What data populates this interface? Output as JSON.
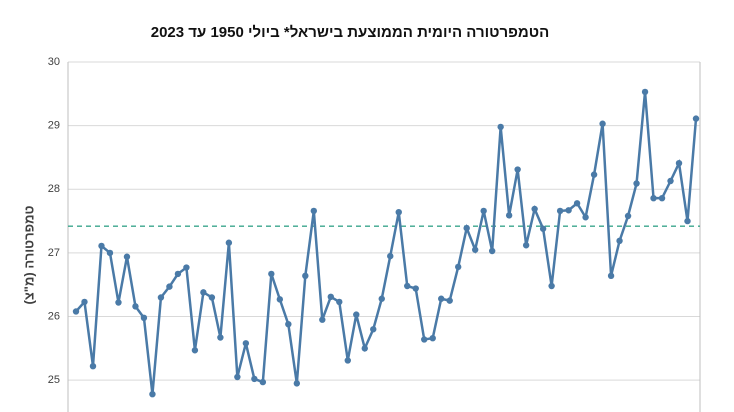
{
  "chart_data": {
    "type": "line",
    "title": "הטמפרטורה היומית הממוצעת בישראל* ביולי 1950 עד 2023",
    "y_label": "טמפרטורה (מ\"צ)",
    "series": [
      {
        "color": "#4a7aa7",
        "values": [
          26.08,
          26.23,
          25.22,
          27.11,
          27.0,
          26.22,
          26.94,
          26.16,
          25.98,
          24.78,
          26.3,
          26.47,
          26.67,
          26.77,
          25.47,
          26.38,
          26.3,
          25.67,
          27.16,
          25.05,
          25.58,
          25.02,
          24.97,
          26.67,
          26.27,
          25.88,
          24.95,
          26.64,
          27.66,
          25.95,
          26.31,
          26.23,
          25.31,
          26.03,
          25.5,
          25.8,
          26.28,
          26.95,
          27.64,
          26.48,
          26.44,
          25.64,
          25.66,
          26.28,
          26.25,
          26.78,
          27.39,
          27.05,
          27.66,
          27.03,
          28.98,
          27.59,
          28.31,
          27.12,
          27.69,
          27.38,
          26.48,
          27.66,
          27.67,
          27.78,
          27.56,
          28.23,
          29.03,
          26.64,
          27.19,
          27.58,
          28.09,
          29.53,
          27.86,
          27.86,
          28.13,
          28.41,
          27.5,
          29.11
        ]
      }
    ],
    "reference_line": {
      "value": 27.42,
      "color": "#3aa58c"
    },
    "ylim": [
      24.5,
      30
    ],
    "yticks": [
      25,
      26,
      27,
      28,
      29,
      30
    ],
    "grid": true
  }
}
